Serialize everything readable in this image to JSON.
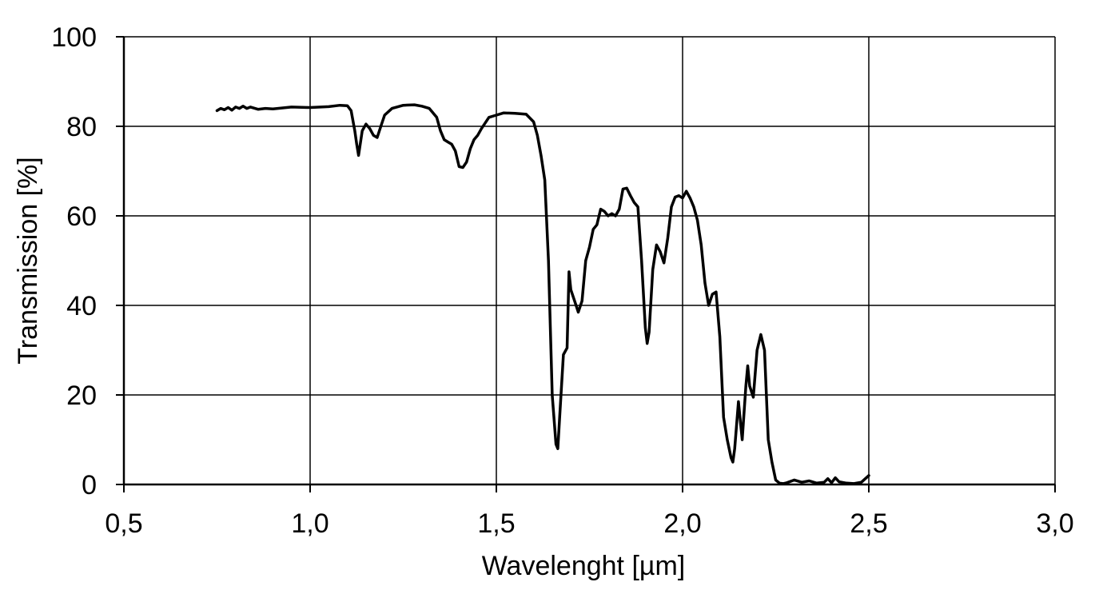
{
  "chart_data": {
    "type": "line",
    "title": "",
    "xlabel": "Wavelenght   [µm]",
    "ylabel": "Transmission   [%]",
    "xlim": [
      0.5,
      3.0
    ],
    "ylim": [
      0,
      100
    ],
    "x_ticks": [
      "0,5",
      "1,0",
      "1,5",
      "2,0",
      "2,5",
      "3,0"
    ],
    "y_ticks": [
      "0",
      "20",
      "40",
      "60",
      "80",
      "100"
    ],
    "grid": true,
    "legend": "none",
    "line_color": "#000000",
    "series": [
      {
        "x": [
          0.75,
          0.76,
          0.77,
          0.78,
          0.79,
          0.8,
          0.81,
          0.82,
          0.83,
          0.84,
          0.86,
          0.88,
          0.9,
          0.95,
          1.0,
          1.05,
          1.08,
          1.1,
          1.11,
          1.12,
          1.125,
          1.13,
          1.14,
          1.15,
          1.16,
          1.17,
          1.18,
          1.19,
          1.2,
          1.22,
          1.25,
          1.28,
          1.3,
          1.32,
          1.34,
          1.35,
          1.36,
          1.37,
          1.38,
          1.39,
          1.4,
          1.41,
          1.42,
          1.43,
          1.44,
          1.45,
          1.46,
          1.48,
          1.5,
          1.52,
          1.55,
          1.58,
          1.6,
          1.61,
          1.62,
          1.63,
          1.64,
          1.65,
          1.66,
          1.665,
          1.67,
          1.68,
          1.69,
          1.695,
          1.7,
          1.71,
          1.72,
          1.73,
          1.74,
          1.75,
          1.76,
          1.77,
          1.78,
          1.79,
          1.8,
          1.81,
          1.82,
          1.83,
          1.84,
          1.85,
          1.86,
          1.87,
          1.88,
          1.89,
          1.9,
          1.905,
          1.91,
          1.92,
          1.93,
          1.94,
          1.95,
          1.96,
          1.97,
          1.98,
          1.99,
          2.0,
          2.01,
          2.02,
          2.03,
          2.04,
          2.05,
          2.06,
          2.07,
          2.08,
          2.09,
          2.1,
          2.11,
          2.12,
          2.13,
          2.135,
          2.14,
          2.15,
          2.16,
          2.17,
          2.175,
          2.18,
          2.19,
          2.2,
          2.21,
          2.22,
          2.23,
          2.24,
          2.25,
          2.26,
          2.27,
          2.28,
          2.3,
          2.32,
          2.34,
          2.36,
          2.38,
          2.39,
          2.4,
          2.41,
          2.42,
          2.44,
          2.46,
          2.48,
          2.5
        ],
        "y": [
          83.5,
          84.0,
          83.7,
          84.2,
          83.6,
          84.3,
          84.0,
          84.5,
          84.0,
          84.3,
          83.8,
          84.0,
          83.9,
          84.3,
          84.2,
          84.4,
          84.7,
          84.6,
          83.5,
          79.0,
          76.0,
          73.5,
          79.0,
          80.5,
          79.5,
          78.0,
          77.5,
          80.0,
          82.5,
          84.0,
          84.7,
          84.8,
          84.5,
          84.0,
          82.0,
          79.0,
          77.0,
          76.5,
          76.0,
          74.5,
          71.0,
          70.8,
          72.0,
          75.0,
          77.0,
          78.0,
          79.5,
          82.0,
          82.5,
          83.0,
          82.9,
          82.7,
          81.0,
          78.0,
          73.5,
          68.0,
          50.0,
          20.0,
          9.0,
          8.0,
          15.0,
          29.0,
          30.5,
          47.5,
          43.5,
          41.0,
          38.5,
          41.0,
          50.0,
          53.0,
          57.0,
          58.0,
          61.5,
          61.0,
          60.0,
          60.5,
          60.0,
          61.5,
          66.0,
          66.2,
          64.5,
          63.0,
          62.0,
          50.0,
          35.0,
          31.5,
          34.0,
          48.0,
          53.5,
          52.0,
          49.5,
          55.0,
          62.0,
          64.2,
          64.5,
          64.0,
          65.5,
          64.0,
          62.0,
          59.0,
          53.5,
          45.0,
          40.0,
          42.5,
          43.0,
          33.0,
          15.0,
          10.0,
          6.0,
          5.0,
          8.0,
          18.5,
          10.0,
          22.0,
          26.5,
          22.0,
          19.5,
          30.0,
          33.5,
          30.0,
          10.0,
          5.0,
          1.0,
          0.3,
          0.2,
          0.4,
          1.0,
          0.5,
          0.8,
          0.3,
          0.5,
          1.3,
          0.4,
          1.5,
          0.6,
          0.3,
          0.2,
          0.5,
          2.0
        ]
      }
    ]
  }
}
